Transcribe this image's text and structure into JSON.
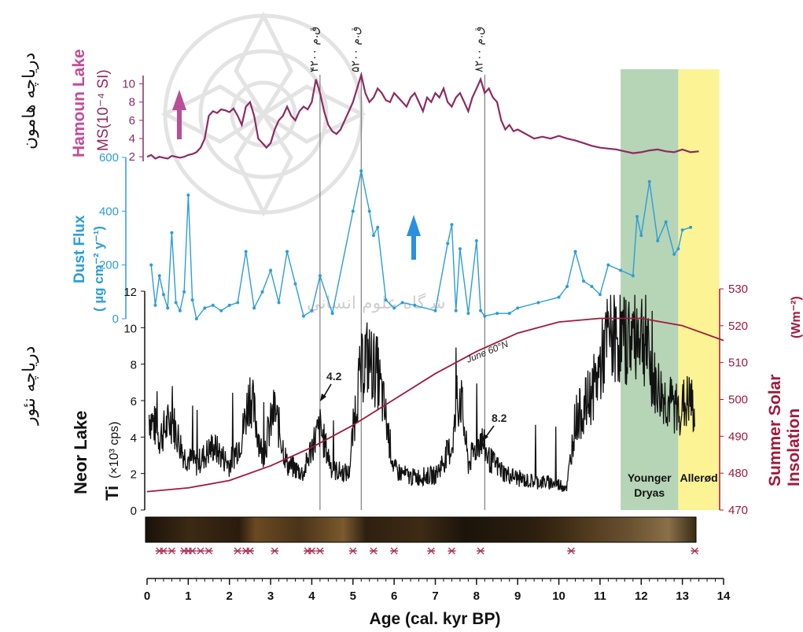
{
  "chart_data": {
    "type": "line",
    "x_axis": {
      "label": "Age (cal. kyr BP)",
      "ticks": [
        "0",
        "1",
        "2",
        "3",
        "4",
        "5",
        "6",
        "7",
        "8",
        "9",
        "10",
        "11",
        "12",
        "13",
        "14"
      ],
      "range": [
        0,
        14
      ]
    },
    "event_lines": [
      {
        "age": 4.2,
        "label": "۴۲۰۰ ق.م"
      },
      {
        "age": 5.2,
        "label": "۵۲۰۰ ق.م"
      },
      {
        "age": 8.2,
        "label": "۸۲۰۰ ق.م"
      }
    ],
    "event_annotations": [
      "4.2",
      "8.2"
    ],
    "bands": [
      {
        "label": "Younger Dryas",
        "label_lines": [
          "Younger",
          "Dryas"
        ],
        "from": 11.5,
        "to": 12.9,
        "color": "#9dc59d"
      },
      {
        "label": "Allerød",
        "label_lines": [
          "Allerød"
        ],
        "from": 12.9,
        "to": 13.9,
        "color": "#fbf07a"
      }
    ],
    "panels": [
      {
        "id": "hamoun",
        "title": "Hamoun Lake",
        "ylabel": "MS(10⁻⁴ SI)",
        "side_label": "دریاچه هامون",
        "color": "#8e2a62",
        "arrow_color": "#b84f96",
        "ylim": [
          1.5,
          11
        ],
        "yticks": [
          "2",
          "4",
          "6",
          "8",
          "10"
        ],
        "x": [
          0.0,
          0.1,
          0.2,
          0.3,
          0.4,
          0.5,
          0.6,
          0.7,
          0.8,
          0.9,
          1.0,
          1.1,
          1.2,
          1.3,
          1.4,
          1.5,
          1.6,
          1.7,
          1.8,
          1.9,
          2.0,
          2.1,
          2.2,
          2.3,
          2.4,
          2.5,
          2.6,
          2.7,
          2.8,
          2.9,
          3.0,
          3.1,
          3.2,
          3.3,
          3.4,
          3.5,
          3.6,
          3.7,
          3.8,
          3.9,
          4.0,
          4.1,
          4.2,
          4.3,
          4.4,
          4.5,
          4.6,
          4.7,
          4.8,
          4.9,
          5.0,
          5.1,
          5.2,
          5.3,
          5.4,
          5.5,
          5.6,
          5.7,
          5.8,
          5.9,
          6.0,
          6.1,
          6.2,
          6.3,
          6.4,
          6.5,
          6.6,
          6.7,
          6.8,
          6.9,
          7.0,
          7.1,
          7.2,
          7.3,
          7.4,
          7.5,
          7.6,
          7.7,
          7.8,
          7.9,
          8.0,
          8.1,
          8.2,
          8.3,
          8.4,
          8.5,
          8.6,
          8.7,
          8.8,
          8.9,
          9.0,
          9.2,
          9.4,
          9.6,
          9.8,
          10.0,
          10.2,
          10.4,
          10.6,
          10.8,
          11.0,
          11.2,
          11.4,
          11.6,
          11.8,
          12.0,
          12.2,
          12.4,
          12.6,
          12.8,
          13.0,
          13.2,
          13.4
        ],
        "y": [
          2.0,
          2.2,
          1.8,
          2.0,
          1.9,
          1.8,
          2.1,
          2.0,
          1.9,
          2.0,
          2.2,
          2.3,
          2.5,
          3.0,
          4.0,
          6.5,
          7.0,
          6.8,
          7.2,
          7.1,
          6.9,
          7.3,
          6.5,
          5.5,
          7.5,
          8.0,
          6.5,
          4.0,
          3.5,
          3.0,
          3.5,
          5.0,
          6.0,
          6.5,
          7.5,
          6.5,
          6.0,
          7.0,
          7.5,
          7.2,
          8.0,
          10.5,
          9.0,
          7.0,
          5.5,
          4.8,
          4.5,
          5.0,
          6.0,
          7.0,
          8.0,
          9.5,
          11.0,
          9.0,
          8.0,
          8.5,
          9.5,
          9.0,
          8.2,
          8.0,
          9.0,
          8.5,
          8.0,
          7.5,
          8.5,
          9.0,
          8.0,
          7.0,
          8.5,
          8.0,
          9.0,
          8.5,
          9.5,
          8.0,
          7.5,
          8.5,
          9.0,
          8.0,
          7.0,
          8.5,
          9.5,
          10.5,
          9.0,
          9.5,
          8.5,
          8.0,
          6.0,
          5.0,
          5.5,
          4.8,
          5.0,
          4.5,
          4.0,
          4.2,
          4.0,
          4.3,
          4.0,
          3.8,
          3.5,
          3.2,
          3.0,
          2.9,
          2.8,
          2.6,
          2.4,
          2.5,
          2.7,
          2.8,
          2.6,
          2.5,
          2.8,
          2.5,
          2.6
        ]
      },
      {
        "id": "dust",
        "title": "Dust Flux",
        "ylabel": "( µg cm⁻² y⁻¹)",
        "color": "#2b9ed8",
        "arrow_color": "#2b8fe0",
        "ylim": [
          0,
          600
        ],
        "yticks": [
          "0",
          "200",
          "400",
          "600"
        ],
        "x": [
          0.1,
          0.2,
          0.3,
          0.4,
          0.5,
          0.6,
          0.7,
          0.8,
          0.9,
          1.0,
          1.1,
          1.2,
          1.4,
          1.6,
          1.8,
          2.0,
          2.2,
          2.4,
          2.6,
          2.8,
          3.0,
          3.2,
          3.4,
          3.6,
          3.8,
          4.0,
          4.2,
          4.5,
          5.0,
          5.2,
          5.4,
          5.5,
          5.6,
          5.8,
          6.0,
          6.2,
          6.5,
          7.0,
          7.3,
          7.4,
          7.5,
          7.6,
          7.8,
          8.0,
          8.1,
          8.2,
          8.5,
          8.8,
          9.0,
          9.5,
          10.0,
          10.2,
          10.4,
          10.6,
          10.8,
          11.0,
          11.2,
          11.5,
          11.8,
          11.9,
          12.0,
          12.2,
          12.4,
          12.6,
          12.8,
          12.9,
          13.0,
          13.2
        ],
        "y": [
          200,
          50,
          160,
          90,
          40,
          320,
          60,
          30,
          100,
          460,
          70,
          0,
          40,
          50,
          30,
          50,
          60,
          250,
          40,
          100,
          180,
          60,
          250,
          130,
          10,
          30,
          160,
          20,
          400,
          550,
          400,
          310,
          340,
          70,
          40,
          60,
          50,
          30,
          280,
          350,
          30,
          260,
          20,
          290,
          30,
          10,
          20,
          20,
          40,
          60,
          80,
          120,
          250,
          140,
          120,
          90,
          200,
          180,
          160,
          380,
          310,
          510,
          290,
          360,
          240,
          260,
          330,
          340
        ]
      },
      {
        "id": "neor",
        "title": "Neor Lake",
        "ylabel": "Ti",
        "ylabel_unit": "(×10³ cps)",
        "side_label": "دریاچه نئور",
        "color": "#111111",
        "ylim": [
          0,
          12
        ],
        "yticks": [
          "0",
          "2",
          "4",
          "6",
          "8",
          "10",
          "12"
        ]
      },
      {
        "id": "insolation",
        "title": "Summer Solar Insolation",
        "title_lines": [
          "Summer Solar",
          "Insolation"
        ],
        "ylabel": "(Wm⁻²)",
        "curve_label": "June 60°N",
        "color": "#a11a3c",
        "ylim": [
          470,
          530
        ],
        "yticks": [
          "470",
          "480",
          "490",
          "500",
          "510",
          "520",
          "530"
        ],
        "x": [
          0,
          1,
          2,
          3,
          4,
          5,
          6,
          7,
          8,
          9,
          10,
          11,
          12,
          13,
          14
        ],
        "y": [
          475,
          476,
          478,
          482,
          487,
          493,
          500,
          507,
          513,
          518,
          521,
          522,
          522,
          520,
          516
        ]
      }
    ],
    "dated_samples": [
      0.3,
      0.4,
      0.6,
      0.9,
      1.0,
      1.1,
      1.3,
      1.5,
      2.2,
      2.4,
      2.5,
      3.1,
      3.9,
      4.0,
      4.2,
      5.0,
      5.5,
      6.0,
      6.9,
      7.4,
      8.1,
      10.3,
      13.3
    ],
    "logo_text": "پژوهشگاه علوم انسانی و مطالعات فرهنگی"
  }
}
